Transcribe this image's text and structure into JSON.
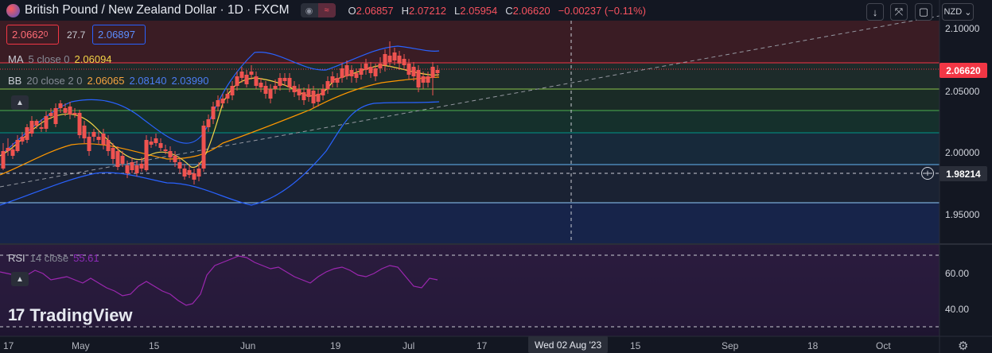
{
  "header": {
    "symbol_title": "British Pound / New Zealand Dollar · 1D · FXCM",
    "open_label": "O",
    "open": "2.06857",
    "high_label": "H",
    "high": "2.07212",
    "low_label": "L",
    "low": "2.05954",
    "close_label": "C",
    "close": "2.06620",
    "change": "−0.00237 (−0.11%)"
  },
  "quote": {
    "bid_main": "2.0662",
    "bid_small": "0",
    "spread": "27.7",
    "ask": "2.06897"
  },
  "indicators": {
    "ma": {
      "label": "MA",
      "params": "5 close 0",
      "value": "2.06094"
    },
    "bb": {
      "label": "BB",
      "params": "20 close 2 0",
      "basis": "2.06065",
      "upper": "2.08140",
      "lower": "2.03990"
    },
    "rsi": {
      "label": "RSI",
      "params": "14 close",
      "value": "55.61"
    }
  },
  "toolbar": {
    "currency": "NZD",
    "down_icon": "↓",
    "fullscreen_icon": "⤧",
    "restore_icon": "▢"
  },
  "price_axis": {
    "ticks": [
      "2.10000",
      "2.05000",
      "2.00000",
      "1.95000"
    ],
    "last_price": "2.06620",
    "crosshair_price": "1.98214"
  },
  "rsi_axis": {
    "ticks": [
      "60.00",
      "40.00"
    ]
  },
  "time_axis": {
    "ticks": [
      "17",
      "May",
      "15",
      "Jun",
      "19",
      "Jul",
      "17",
      "15",
      "Sep",
      "18",
      "Oct"
    ],
    "crosshair_date": "Wed 02 Aug '23"
  },
  "logo": {
    "text": "TradingView"
  },
  "colors": {
    "bull": "#26a69a",
    "bear": "#ef5350",
    "ma": "#f5d547",
    "bb_basis": "#ff9800",
    "bb_band": "#2962ff",
    "rsi": "#9c27b0",
    "accent_red": "#f23645"
  },
  "chart_data": {
    "type": "candlestick",
    "title": "British Pound / New Zealand Dollar · 1D · FXCM",
    "ylim": [
      1.93,
      2.11
    ],
    "y_ticks": [
      2.1,
      2.05,
      2.0,
      1.95
    ],
    "date_range": [
      "2023-04-17",
      "2023-07-07"
    ],
    "last_candle": {
      "date": "2023-07-07",
      "open": 2.06857,
      "high": 2.07212,
      "low": 2.05954,
      "close": 2.0662
    },
    "overlays": [
      {
        "name": "MA 5 close",
        "last": 2.06094
      },
      {
        "name": "BB basis",
        "last": 2.06065
      },
      {
        "name": "BB upper",
        "last": 2.0814
      },
      {
        "name": "BB lower",
        "last": 2.0399
      }
    ],
    "rsi": {
      "length": 14,
      "last": 55.61,
      "ylim": [
        30,
        70
      ],
      "y_ticks": [
        60,
        40
      ]
    },
    "horizontal_levels": [
      2.1,
      2.0662,
      2.05,
      2.035,
      2.0155,
      1.98,
      1.96
    ],
    "grid": false
  }
}
